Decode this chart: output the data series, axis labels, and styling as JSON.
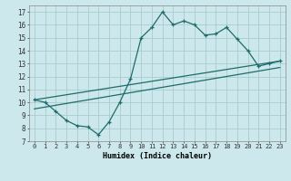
{
  "xlabel": "Humidex (Indice chaleur)",
  "bg_color": "#cce8ec",
  "grid_color": "#aacccc",
  "line_color": "#1e6b6b",
  "xlim": [
    -0.5,
    23.5
  ],
  "ylim": [
    7,
    17.5
  ],
  "xticks": [
    0,
    1,
    2,
    3,
    4,
    5,
    6,
    7,
    8,
    9,
    10,
    11,
    12,
    13,
    14,
    15,
    16,
    17,
    18,
    19,
    20,
    21,
    22,
    23
  ],
  "yticks": [
    7,
    8,
    9,
    10,
    11,
    12,
    13,
    14,
    15,
    16,
    17
  ],
  "line1_x": [
    0,
    1,
    2,
    3,
    4,
    5,
    6,
    7,
    8,
    9,
    10,
    11,
    12,
    13,
    14,
    15,
    16,
    17,
    18,
    19,
    20,
    21,
    22,
    23
  ],
  "line1_y": [
    10.2,
    10.0,
    9.3,
    8.6,
    8.2,
    8.1,
    7.5,
    8.5,
    10.0,
    11.8,
    15.0,
    15.8,
    17.0,
    16.0,
    16.3,
    16.0,
    15.2,
    15.3,
    15.8,
    14.9,
    14.0,
    12.8,
    13.0,
    13.2
  ],
  "line2_x": [
    0,
    23
  ],
  "line2_y": [
    10.2,
    13.2
  ],
  "line3_x": [
    0,
    23
  ],
  "line3_y": [
    9.5,
    12.7
  ]
}
